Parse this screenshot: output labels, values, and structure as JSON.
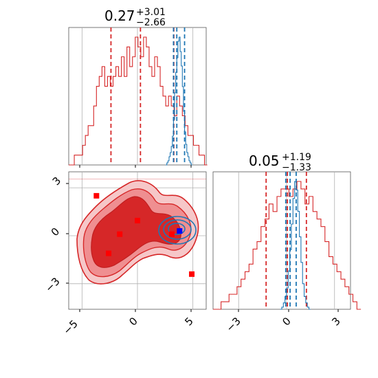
{
  "colors": {
    "red": "#d62728",
    "red_light": "#f0a6a8",
    "red_mid": "#e6676a",
    "blue": "#1f77b4",
    "square_red": "#ff0000",
    "square_blue": "#0000ff",
    "grid": "#b0b0b0",
    "axes": "#555555"
  },
  "chart_data": [
    {
      "type": "histogram",
      "panel": "marginal-x",
      "title_center": "0.27",
      "title_plus": "+3.01",
      "title_minus": "−2.66",
      "xlim": [
        -6.2,
        6.2
      ],
      "grid": true,
      "series": [
        {
          "color": "#d62728",
          "bin_start": -6.2,
          "bin_width": 0.25,
          "values": [
            0,
            0,
            1,
            1,
            1,
            2,
            3,
            4,
            4,
            6,
            8,
            9,
            10,
            8,
            9,
            8,
            9,
            10,
            9,
            11,
            9,
            12,
            10,
            11,
            13,
            12,
            11,
            13,
            12,
            10,
            9,
            11,
            10,
            8,
            7,
            6,
            7,
            6,
            5,
            7,
            6,
            5,
            4,
            3,
            3,
            2,
            2,
            1,
            1,
            0
          ],
          "quantiles": [
            -2.39,
            0.27,
            3.28
          ]
        },
        {
          "color": "#1f77b4",
          "bin_start": 2.55,
          "bin_width": 0.1,
          "values": [
            0,
            1,
            2,
            4,
            6,
            9,
            14,
            22,
            35,
            45,
            52,
            60,
            62,
            55,
            48,
            38,
            26,
            16,
            10,
            6,
            4,
            2,
            1,
            0
          ],
          "quantiles": [
            3.25,
            3.55,
            4.25
          ]
        }
      ]
    },
    {
      "type": "contour",
      "panel": "joint",
      "xlim": [
        -6.2,
        6.2
      ],
      "ylim": [
        -4.6,
        4.0
      ],
      "xticks": [
        "−5",
        "0",
        "5"
      ],
      "yticks": [
        "3",
        "0",
        "−3"
      ],
      "grid": true,
      "red_squares": [
        [
          -3.7,
          2.5
        ],
        [
          0.0,
          0.95
        ],
        [
          -1.6,
          0.1
        ],
        [
          -2.6,
          -1.1
        ],
        [
          3.1,
          0.1
        ],
        [
          4.9,
          -2.4
        ]
      ],
      "blue_square": [
        3.8,
        0.3
      ],
      "truth_line_y": 3.55
    },
    {
      "type": "histogram",
      "panel": "marginal-y",
      "title_center": "0.05",
      "title_plus": "+1.19",
      "title_minus": "−1.33",
      "xlim": [
        -4.6,
        4.0
      ],
      "xticks": [
        "−3",
        "0",
        "3"
      ],
      "grid": true,
      "series": [
        {
          "color": "#d62728",
          "bin_start": -4.6,
          "bin_width": 0.25,
          "values": [
            0,
            0,
            1,
            1,
            2,
            2,
            3,
            4,
            5,
            6,
            8,
            9,
            11,
            12,
            14,
            13,
            15,
            16,
            16,
            15,
            16,
            17,
            16,
            14,
            15,
            13,
            12,
            11,
            9,
            7,
            6,
            5,
            4,
            3,
            2,
            1,
            0
          ],
          "quantiles": [
            -1.28,
            0.05,
            1.24
          ]
        },
        {
          "color": "#1f77b4",
          "bin_start": -0.4,
          "bin_width": 0.1,
          "values": [
            0,
            1,
            3,
            6,
            10,
            18,
            28,
            40,
            52,
            60,
            56,
            46,
            34,
            22,
            12,
            6,
            3,
            1,
            0
          ],
          "quantiles": [
            -0.05,
            0.22,
            0.6
          ]
        }
      ]
    }
  ]
}
